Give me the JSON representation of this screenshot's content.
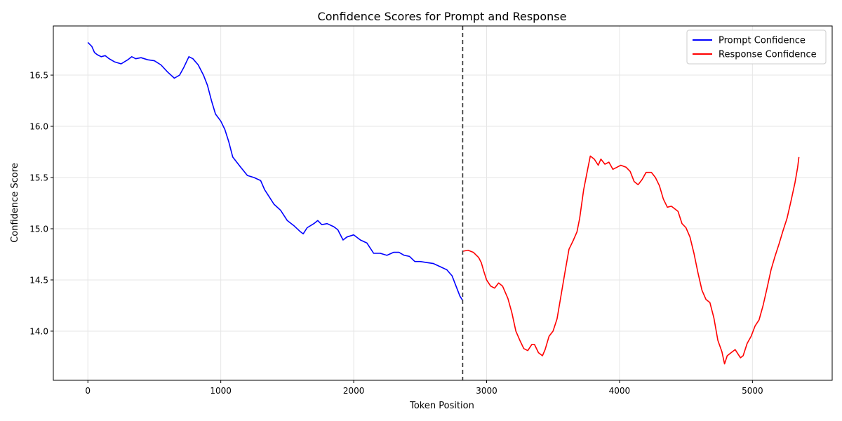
{
  "chart_data": {
    "type": "line",
    "title": "Confidence Scores for Prompt and Response",
    "xlabel": "Token Position",
    "ylabel": "Confidence Score",
    "xlim": [
      -260,
      5600
    ],
    "ylim": [
      13.52,
      16.98
    ],
    "xticks": [
      0,
      1000,
      2000,
      3000,
      4000,
      5000
    ],
    "xtick_labels": [
      "0",
      "1000",
      "2000",
      "3000",
      "4000",
      "5000"
    ],
    "yticks": [
      14.0,
      14.5,
      15.0,
      15.5,
      16.0,
      16.5
    ],
    "ytick_labels": [
      "14.0",
      "14.5",
      "15.0",
      "15.5",
      "16.0",
      "16.5"
    ],
    "grid": true,
    "legend_position": "top-right",
    "divider_x": 2820,
    "series": [
      {
        "name": "Prompt Confidence",
        "color": "#0000ff",
        "points": [
          [
            0,
            16.82
          ],
          [
            30,
            16.78
          ],
          [
            50,
            16.72
          ],
          [
            70,
            16.7
          ],
          [
            100,
            16.68
          ],
          [
            130,
            16.69
          ],
          [
            160,
            16.66
          ],
          [
            200,
            16.63
          ],
          [
            250,
            16.61
          ],
          [
            300,
            16.65
          ],
          [
            330,
            16.68
          ],
          [
            360,
            16.66
          ],
          [
            400,
            16.67
          ],
          [
            450,
            16.65
          ],
          [
            500,
            16.64
          ],
          [
            550,
            16.6
          ],
          [
            600,
            16.53
          ],
          [
            650,
            16.47
          ],
          [
            690,
            16.5
          ],
          [
            720,
            16.57
          ],
          [
            760,
            16.68
          ],
          [
            790,
            16.66
          ],
          [
            830,
            16.6
          ],
          [
            870,
            16.5
          ],
          [
            900,
            16.4
          ],
          [
            930,
            16.25
          ],
          [
            960,
            16.12
          ],
          [
            1000,
            16.05
          ],
          [
            1030,
            15.97
          ],
          [
            1060,
            15.85
          ],
          [
            1090,
            15.7
          ],
          [
            1120,
            15.65
          ],
          [
            1150,
            15.6
          ],
          [
            1200,
            15.52
          ],
          [
            1250,
            15.5
          ],
          [
            1300,
            15.47
          ],
          [
            1330,
            15.38
          ],
          [
            1370,
            15.3
          ],
          [
            1400,
            15.24
          ],
          [
            1450,
            15.18
          ],
          [
            1500,
            15.08
          ],
          [
            1550,
            15.03
          ],
          [
            1600,
            14.97
          ],
          [
            1620,
            14.95
          ],
          [
            1650,
            15.01
          ],
          [
            1700,
            15.05
          ],
          [
            1730,
            15.08
          ],
          [
            1760,
            15.04
          ],
          [
            1800,
            15.05
          ],
          [
            1850,
            15.02
          ],
          [
            1880,
            14.99
          ],
          [
            1920,
            14.89
          ],
          [
            1950,
            14.92
          ],
          [
            2000,
            14.94
          ],
          [
            2050,
            14.89
          ],
          [
            2100,
            14.86
          ],
          [
            2150,
            14.76
          ],
          [
            2200,
            14.76
          ],
          [
            2250,
            14.74
          ],
          [
            2300,
            14.77
          ],
          [
            2340,
            14.77
          ],
          [
            2380,
            14.74
          ],
          [
            2420,
            14.73
          ],
          [
            2460,
            14.68
          ],
          [
            2500,
            14.68
          ],
          [
            2550,
            14.67
          ],
          [
            2600,
            14.66
          ],
          [
            2650,
            14.63
          ],
          [
            2700,
            14.6
          ],
          [
            2740,
            14.54
          ],
          [
            2770,
            14.44
          ],
          [
            2800,
            14.34
          ],
          [
            2820,
            14.3
          ]
        ]
      },
      {
        "name": "Response Confidence",
        "color": "#ff0000",
        "points": [
          [
            2820,
            14.78
          ],
          [
            2860,
            14.79
          ],
          [
            2900,
            14.77
          ],
          [
            2940,
            14.72
          ],
          [
            2960,
            14.67
          ],
          [
            2980,
            14.58
          ],
          [
            3000,
            14.5
          ],
          [
            3030,
            14.44
          ],
          [
            3060,
            14.42
          ],
          [
            3090,
            14.47
          ],
          [
            3120,
            14.44
          ],
          [
            3160,
            14.32
          ],
          [
            3190,
            14.18
          ],
          [
            3220,
            14.0
          ],
          [
            3250,
            13.91
          ],
          [
            3280,
            13.83
          ],
          [
            3310,
            13.81
          ],
          [
            3340,
            13.87
          ],
          [
            3360,
            13.87
          ],
          [
            3390,
            13.79
          ],
          [
            3420,
            13.76
          ],
          [
            3440,
            13.82
          ],
          [
            3470,
            13.95
          ],
          [
            3500,
            14.0
          ],
          [
            3530,
            14.12
          ],
          [
            3560,
            14.35
          ],
          [
            3590,
            14.58
          ],
          [
            3620,
            14.8
          ],
          [
            3650,
            14.88
          ],
          [
            3680,
            14.97
          ],
          [
            3700,
            15.1
          ],
          [
            3730,
            15.38
          ],
          [
            3760,
            15.58
          ],
          [
            3780,
            15.71
          ],
          [
            3810,
            15.68
          ],
          [
            3840,
            15.62
          ],
          [
            3860,
            15.68
          ],
          [
            3890,
            15.63
          ],
          [
            3920,
            15.65
          ],
          [
            3950,
            15.58
          ],
          [
            3980,
            15.6
          ],
          [
            4010,
            15.62
          ],
          [
            4050,
            15.6
          ],
          [
            4080,
            15.56
          ],
          [
            4110,
            15.46
          ],
          [
            4140,
            15.43
          ],
          [
            4170,
            15.48
          ],
          [
            4200,
            15.55
          ],
          [
            4240,
            15.55
          ],
          [
            4270,
            15.5
          ],
          [
            4300,
            15.42
          ],
          [
            4330,
            15.29
          ],
          [
            4360,
            15.21
          ],
          [
            4390,
            15.22
          ],
          [
            4420,
            15.19
          ],
          [
            4440,
            15.17
          ],
          [
            4470,
            15.05
          ],
          [
            4500,
            15.01
          ],
          [
            4530,
            14.92
          ],
          [
            4560,
            14.76
          ],
          [
            4590,
            14.57
          ],
          [
            4620,
            14.4
          ],
          [
            4650,
            14.31
          ],
          [
            4680,
            14.28
          ],
          [
            4710,
            14.13
          ],
          [
            4740,
            13.91
          ],
          [
            4770,
            13.8
          ],
          [
            4790,
            13.68
          ],
          [
            4810,
            13.76
          ],
          [
            4840,
            13.79
          ],
          [
            4870,
            13.82
          ],
          [
            4890,
            13.78
          ],
          [
            4910,
            13.74
          ],
          [
            4930,
            13.76
          ],
          [
            4960,
            13.88
          ],
          [
            4990,
            13.95
          ],
          [
            5020,
            14.05
          ],
          [
            5050,
            14.11
          ],
          [
            5080,
            14.25
          ],
          [
            5110,
            14.42
          ],
          [
            5140,
            14.6
          ],
          [
            5170,
            14.73
          ],
          [
            5200,
            14.85
          ],
          [
            5230,
            14.98
          ],
          [
            5260,
            15.1
          ],
          [
            5290,
            15.27
          ],
          [
            5320,
            15.45
          ],
          [
            5340,
            15.6
          ],
          [
            5350,
            15.7
          ]
        ]
      }
    ]
  }
}
